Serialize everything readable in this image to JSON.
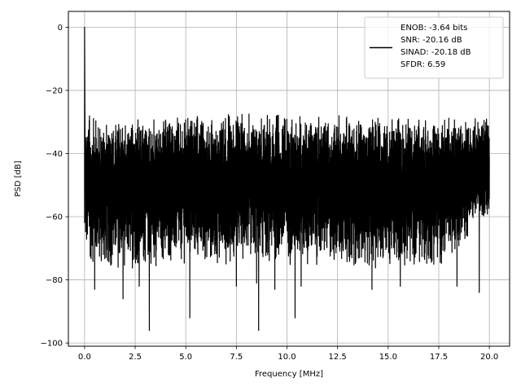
{
  "chart_data": {
    "type": "line",
    "title": "",
    "xlabel": "Frequency [MHz]",
    "ylabel": "PSD [dB]",
    "xlim": [
      -0.8,
      21.0
    ],
    "ylim": [
      -101,
      5
    ],
    "xticks": [
      0.0,
      2.5,
      5.0,
      7.5,
      10.0,
      12.5,
      15.0,
      17.5,
      20.0
    ],
    "xtick_labels": [
      "0.0",
      "2.5",
      "5.0",
      "7.5",
      "10.0",
      "12.5",
      "15.0",
      "17.5",
      "20.0"
    ],
    "yticks": [
      0,
      -20,
      -40,
      -60,
      -80,
      -100
    ],
    "ytick_labels": [
      "0",
      "−20",
      "−40",
      "−60",
      "−80",
      "−100"
    ],
    "grid": true,
    "legend_position": "top-right",
    "series": [
      {
        "name": "ENOB: -3.64 bits\nSNR: -20.16 dB\nSINAD: -20.18 dB\nSFDR: 6.59",
        "color": "#000000",
        "x_range": [
          0.0,
          20.0
        ],
        "peak": {
          "x": 0.0,
          "y": 0.0
        },
        "envelope": [
          {
            "x": 0.05,
            "upper": -26,
            "lower": -75
          },
          {
            "x": 1.0,
            "upper": -30,
            "lower": -78
          },
          {
            "x": 2.5,
            "upper": -29,
            "lower": -77
          },
          {
            "x": 5.0,
            "upper": -28,
            "lower": -76
          },
          {
            "x": 7.5,
            "upper": -26.5,
            "lower": -75
          },
          {
            "x": 10.0,
            "upper": -27,
            "lower": -76
          },
          {
            "x": 12.5,
            "upper": -27.5,
            "lower": -76
          },
          {
            "x": 15.0,
            "upper": -28,
            "lower": -77
          },
          {
            "x": 17.5,
            "upper": -28.5,
            "lower": -77
          },
          {
            "x": 20.0,
            "upper": -28,
            "lower": -60
          }
        ],
        "deep_notches": [
          {
            "x": 0.5,
            "y": -83
          },
          {
            "x": 1.9,
            "y": -86
          },
          {
            "x": 2.7,
            "y": -82
          },
          {
            "x": 3.2,
            "y": -96
          },
          {
            "x": 5.2,
            "y": -92
          },
          {
            "x": 7.5,
            "y": -82
          },
          {
            "x": 8.5,
            "y": -81
          },
          {
            "x": 8.6,
            "y": -96
          },
          {
            "x": 9.4,
            "y": -83
          },
          {
            "x": 10.4,
            "y": -92
          },
          {
            "x": 10.7,
            "y": -82
          },
          {
            "x": 14.2,
            "y": -83
          },
          {
            "x": 15.6,
            "y": -82
          },
          {
            "x": 18.4,
            "y": -82
          },
          {
            "x": 19.5,
            "y": -84
          }
        ]
      }
    ]
  }
}
